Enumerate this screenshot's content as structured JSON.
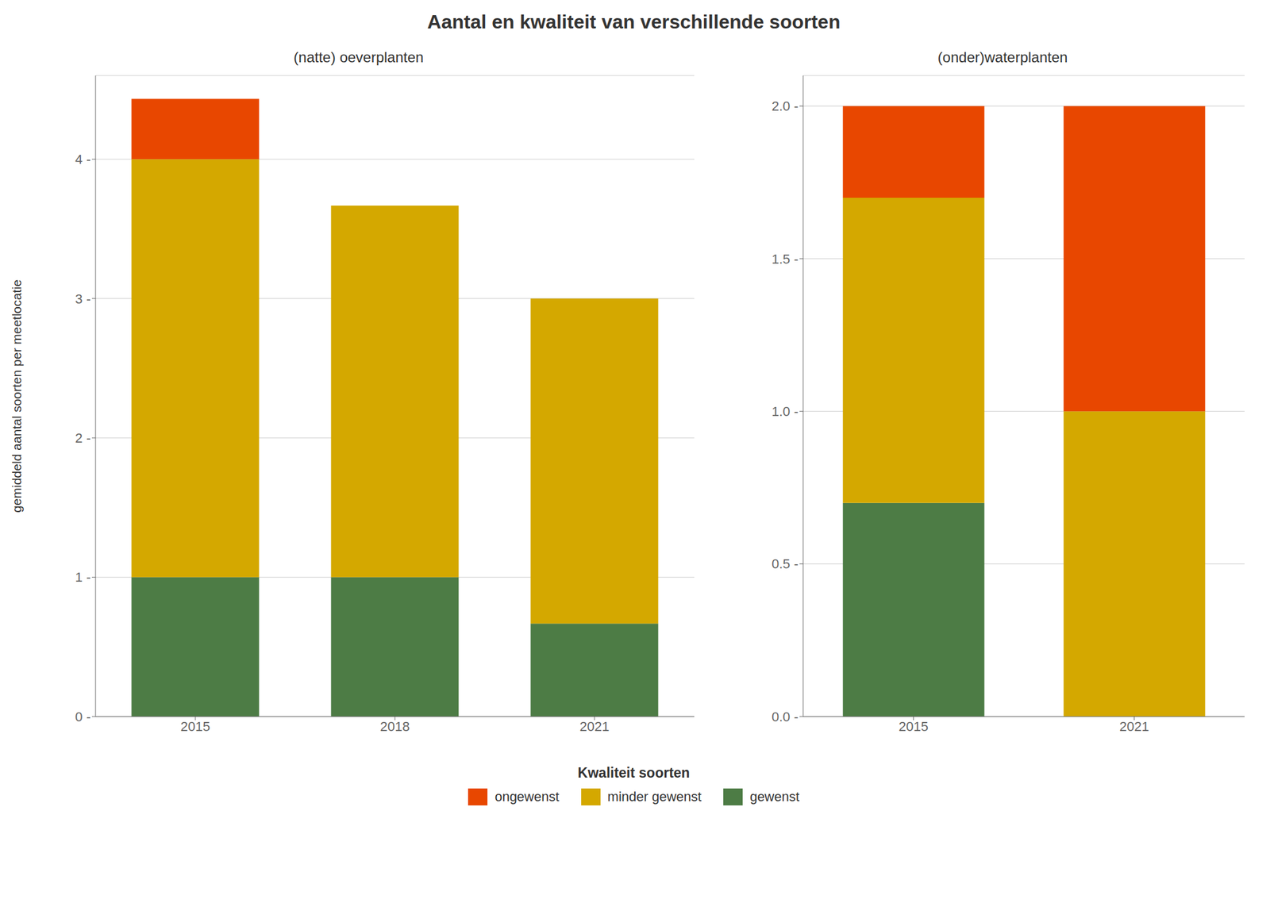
{
  "title": "Aantal en kwaliteit van verschillende soorten",
  "legend_title": "Kwaliteit soorten",
  "legend": "bottom",
  "chart_data": [
    {
      "type": "bar",
      "stacked": true,
      "grid": true,
      "title": "(natte) oeverplanten",
      "y_label": "gemiddeld aantal soorten per meetlocatie",
      "categories": [
        "2015",
        "2018",
        "2021"
      ],
      "series": [
        {
          "name": "gewenst",
          "color": "#4d7c45",
          "values": [
            1.0,
            1.0,
            0.667
          ]
        },
        {
          "name": "minder gewenst",
          "color": "#d4a800",
          "values": [
            3.0,
            2.667,
            2.333
          ]
        },
        {
          "name": "ongewenst",
          "color": "#e84700",
          "values": [
            0.433,
            0.0,
            0.0
          ]
        }
      ],
      "ylim": [
        0,
        4.6
      ],
      "yticks": [
        {
          "value": 0,
          "label": "0 -"
        },
        {
          "value": 1,
          "label": "1 -"
        },
        {
          "value": 2,
          "label": "2 -"
        },
        {
          "value": 3,
          "label": "3 -"
        },
        {
          "value": 4,
          "label": "4 -"
        }
      ]
    },
    {
      "type": "bar",
      "stacked": true,
      "grid": true,
      "title": "(onder)waterplanten",
      "categories": [
        "2015",
        "2021"
      ],
      "series": [
        {
          "name": "gewenst",
          "color": "#4d7c45",
          "values": [
            0.7,
            0.0
          ]
        },
        {
          "name": "minder gewenst",
          "color": "#d4a800",
          "values": [
            1.0,
            1.0
          ]
        },
        {
          "name": "ongewenst",
          "color": "#e84700",
          "values": [
            0.3,
            1.0
          ]
        }
      ],
      "ylim": [
        0,
        2.1
      ],
      "yticks": [
        {
          "value": 0.0,
          "label": "0.0 -"
        },
        {
          "value": 0.5,
          "label": "0.5 -"
        },
        {
          "value": 1.0,
          "label": "1.0 -"
        },
        {
          "value": 1.5,
          "label": "1.5 -"
        },
        {
          "value": 2.0,
          "label": "2.0 -"
        }
      ]
    }
  ]
}
